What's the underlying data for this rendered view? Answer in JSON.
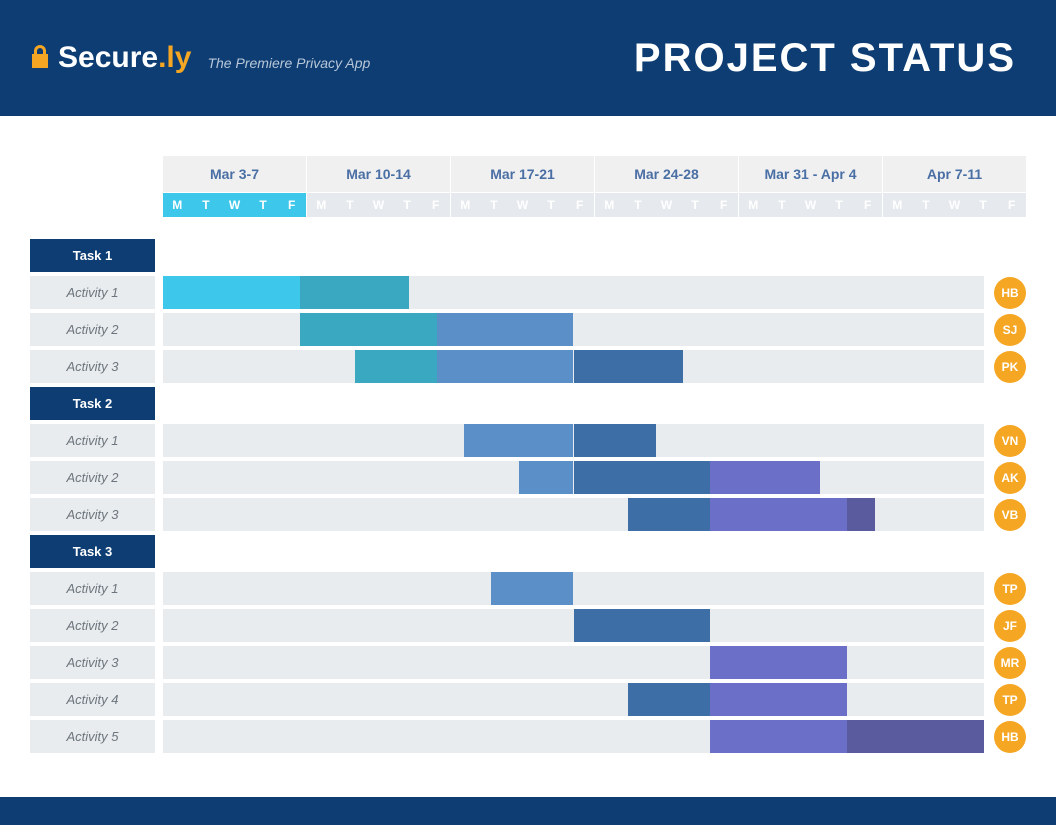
{
  "header": {
    "logo_secure": "Secure",
    "logo_dot": ".",
    "logo_ly": "ly",
    "tagline": "The Premiere Privacy App",
    "page_title": "PROJECT STATUS",
    "lock_color": "#f5a623"
  },
  "colors": {
    "header_bg": "#0d3d73",
    "accent": "#f5a623",
    "week_label_bg": "#f0f0f0",
    "week_label_text": "#4a6fa5",
    "day_cell_bg": "#e6e9ed",
    "day_cell_highlight_bg": "#3dc7eb",
    "day_cell_text": "#ffffff",
    "row_label_bg": "#e9ecef",
    "row_label_text": "#6c757d",
    "track_bg": "#e9ecef",
    "assignee_bg": "#f5a623"
  },
  "timeline": {
    "total_days": 30,
    "weeks": [
      {
        "label": "Mar 3-7",
        "highlight": true
      },
      {
        "label": "Mar 10-14",
        "highlight": false
      },
      {
        "label": "Mar 17-21",
        "highlight": false
      },
      {
        "label": "Mar 24-28",
        "highlight": false
      },
      {
        "label": "Mar 31 - Apr 4",
        "highlight": false
      },
      {
        "label": "Apr 7-11",
        "highlight": false
      }
    ],
    "day_letters": [
      "M",
      "T",
      "W",
      "T",
      "F"
    ]
  },
  "tasks": [
    {
      "name": "Task 1",
      "activities": [
        {
          "label": "Activity 1",
          "assignee": "HB",
          "bars": [
            {
              "start": 0,
              "span": 5,
              "color": "#3dc7eb"
            },
            {
              "start": 5,
              "span": 4,
              "color": "#3aa8c1"
            }
          ]
        },
        {
          "label": "Activity 2",
          "assignee": "SJ",
          "bars": [
            {
              "start": 5,
              "span": 5,
              "color": "#3aa8c1"
            },
            {
              "start": 10,
              "span": 5,
              "color": "#5b8fc7"
            }
          ]
        },
        {
          "label": "Activity 3",
          "assignee": "PK",
          "bars": [
            {
              "start": 7,
              "span": 3,
              "color": "#3aa8c1"
            },
            {
              "start": 10,
              "span": 5,
              "color": "#5b8fc7"
            },
            {
              "start": 15,
              "span": 4,
              "color": "#3d6ea5"
            }
          ]
        }
      ]
    },
    {
      "name": "Task 2",
      "activities": [
        {
          "label": "Activity 1",
          "assignee": "VN",
          "bars": [
            {
              "start": 11,
              "span": 4,
              "color": "#5b8fc7"
            },
            {
              "start": 15,
              "span": 3,
              "color": "#3d6ea5"
            }
          ]
        },
        {
          "label": "Activity 2",
          "assignee": "AK",
          "bars": [
            {
              "start": 13,
              "span": 2,
              "color": "#5b8fc7"
            },
            {
              "start": 15,
              "span": 5,
              "color": "#3d6ea5"
            },
            {
              "start": 20,
              "span": 4,
              "color": "#6b6fc7"
            }
          ]
        },
        {
          "label": "Activity 3",
          "assignee": "VB",
          "bars": [
            {
              "start": 17,
              "span": 3,
              "color": "#3d6ea5"
            },
            {
              "start": 20,
              "span": 5,
              "color": "#6b6fc7"
            },
            {
              "start": 25,
              "span": 1,
              "color": "#5a5a9e"
            }
          ]
        }
      ]
    },
    {
      "name": "Task 3",
      "activities": [
        {
          "label": "Activity 1",
          "assignee": "TP",
          "bars": [
            {
              "start": 12,
              "span": 3,
              "color": "#5b8fc7"
            }
          ]
        },
        {
          "label": "Activity 2",
          "assignee": "JF",
          "bars": [
            {
              "start": 15,
              "span": 5,
              "color": "#3d6ea5"
            }
          ]
        },
        {
          "label": "Activity 3",
          "assignee": "MR",
          "bars": [
            {
              "start": 20,
              "span": 5,
              "color": "#6b6fc7"
            }
          ]
        },
        {
          "label": "Activity 4",
          "assignee": "TP",
          "bars": [
            {
              "start": 17,
              "span": 3,
              "color": "#3d6ea5"
            },
            {
              "start": 20,
              "span": 5,
              "color": "#6b6fc7"
            }
          ]
        },
        {
          "label": "Activity 5",
          "assignee": "HB",
          "bars": [
            {
              "start": 20,
              "span": 5,
              "color": "#6b6fc7"
            },
            {
              "start": 25,
              "span": 5,
              "color": "#5a5a9e"
            }
          ]
        }
      ]
    }
  ]
}
